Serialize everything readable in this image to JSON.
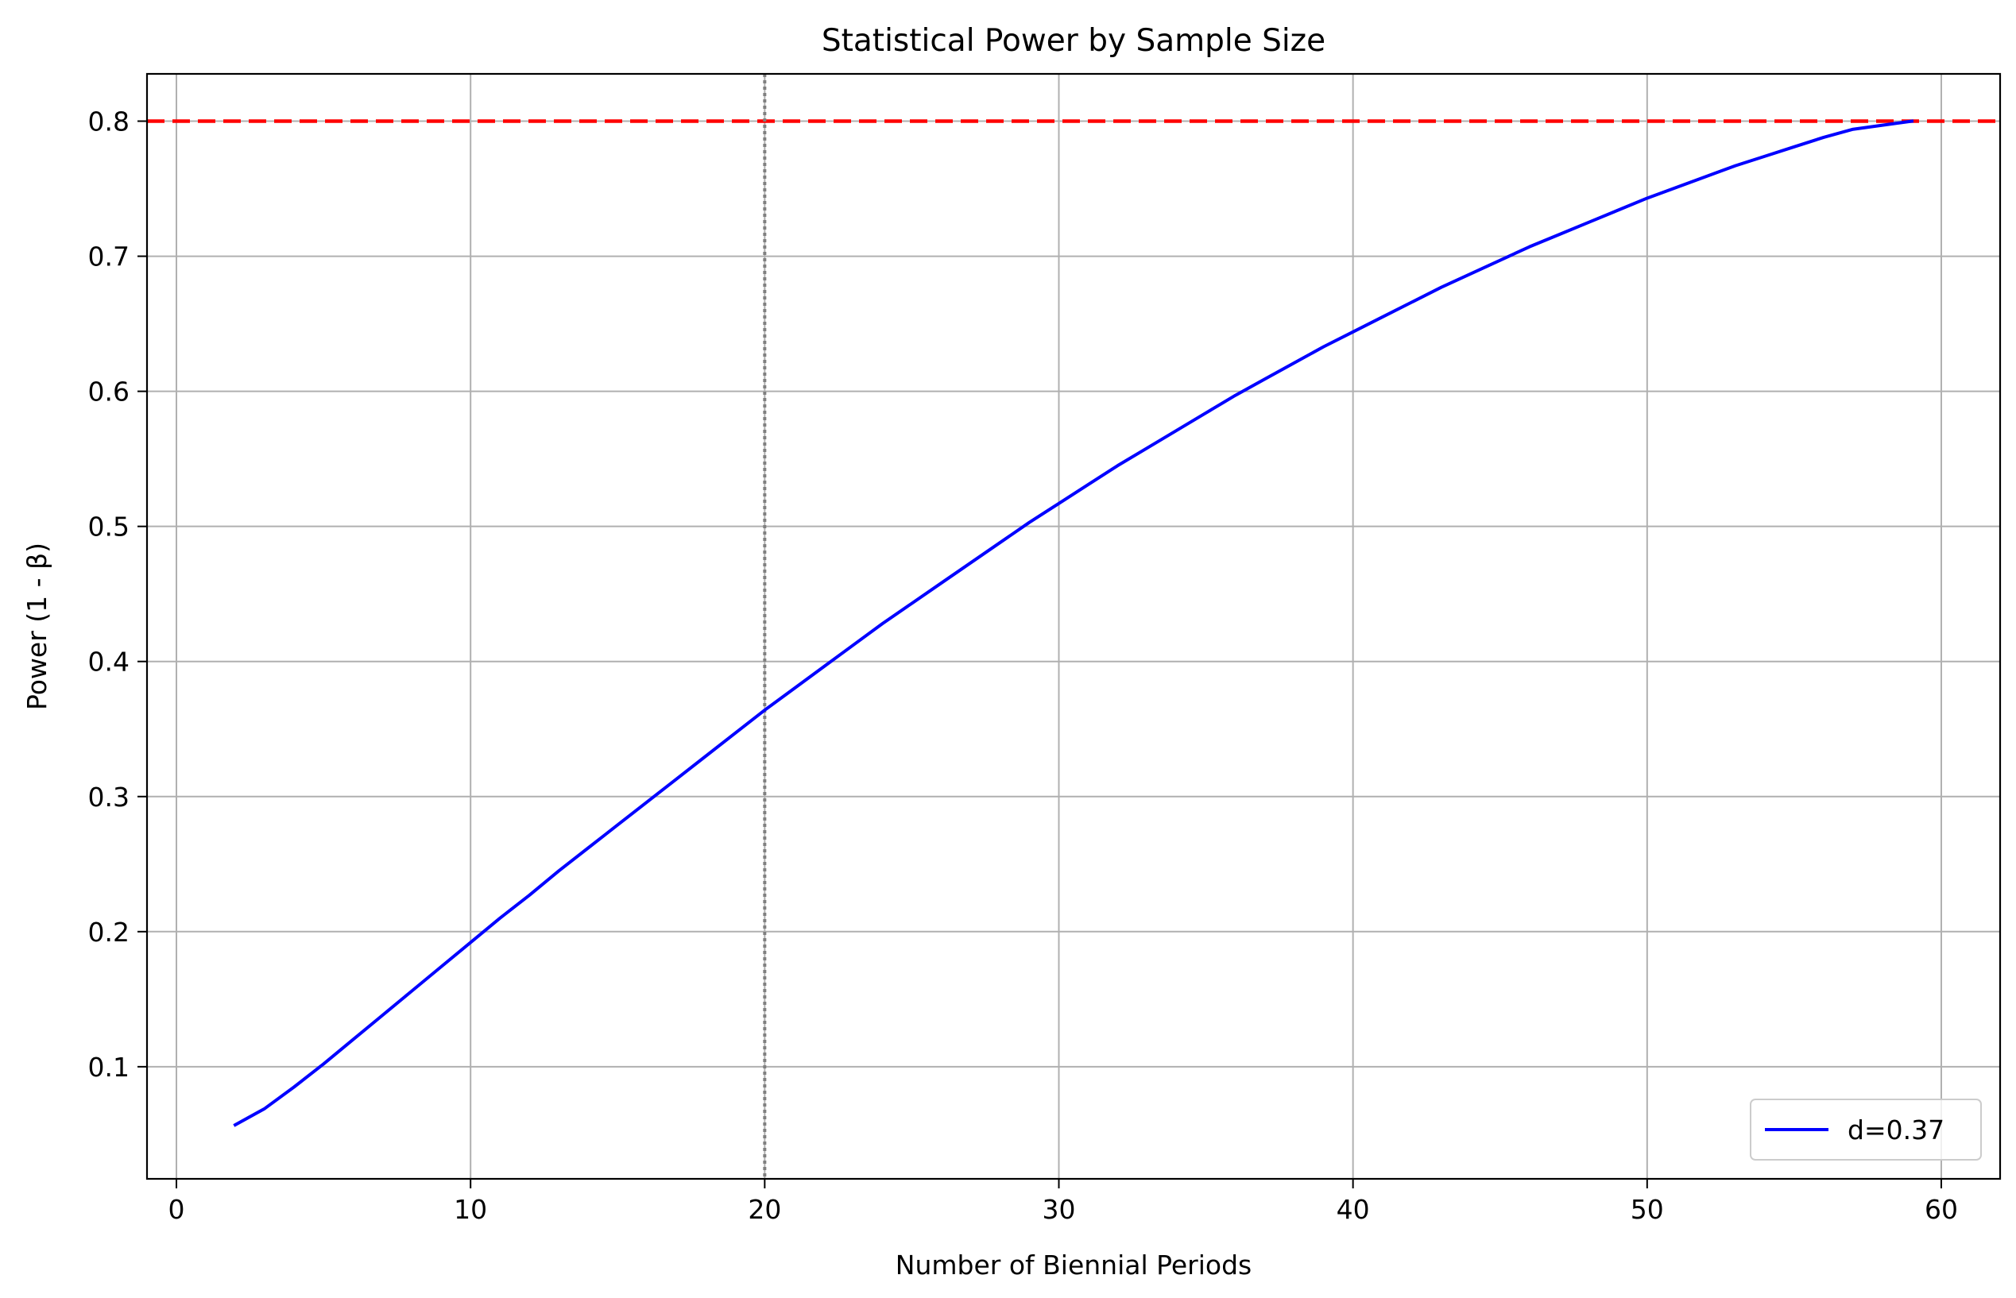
{
  "chart_data": {
    "type": "line",
    "title": "Statistical Power by Sample Size",
    "xlabel": "Number of Biennial Periods",
    "ylabel": "Power (1 - β)",
    "xlim": [
      -1,
      62
    ],
    "ylim": [
      0.017,
      0.835
    ],
    "x_ticks": [
      0,
      10,
      20,
      30,
      40,
      50,
      60
    ],
    "y_ticks": [
      0.1,
      0.2,
      0.3,
      0.4,
      0.5,
      0.6,
      0.7,
      0.8
    ],
    "grid": true,
    "legend_position": "lower-right",
    "series": [
      {
        "name": "d=0.37",
        "color": "#0000ff",
        "x": [
          2,
          3,
          4,
          5,
          6,
          7,
          8,
          9,
          10,
          11,
          12,
          13,
          14,
          15,
          16,
          17,
          18,
          19,
          20,
          21,
          22,
          23,
          24,
          25,
          26,
          27,
          28,
          29,
          30,
          31,
          32,
          33,
          34,
          35,
          36,
          37,
          38,
          39,
          40,
          41,
          42,
          43,
          44,
          45,
          46,
          47,
          48,
          49,
          50,
          51,
          52,
          53,
          54,
          55,
          56,
          57,
          58,
          59
        ],
        "y": [
          0.057,
          0.069,
          0.085,
          0.102,
          0.12,
          0.138,
          0.156,
          0.174,
          0.192,
          0.21,
          0.227,
          0.245,
          0.262,
          0.279,
          0.296,
          0.313,
          0.33,
          0.347,
          0.364,
          0.38,
          0.396,
          0.412,
          0.428,
          0.443,
          0.458,
          0.473,
          0.488,
          0.503,
          0.517,
          0.531,
          0.545,
          0.558,
          0.571,
          0.584,
          0.597,
          0.609,
          0.621,
          0.633,
          0.644,
          0.655,
          0.666,
          0.677,
          0.687,
          0.697,
          0.707,
          0.716,
          0.725,
          0.734,
          0.743,
          0.751,
          0.759,
          0.767,
          0.774,
          0.781,
          0.788,
          0.794,
          0.797,
          0.8
        ]
      }
    ],
    "reference_lines": [
      {
        "orientation": "horizontal",
        "value": 0.8,
        "color": "#ff0000",
        "style": "dashed"
      },
      {
        "orientation": "vertical",
        "value": 20,
        "color": "#808080",
        "style": "dotted"
      }
    ]
  }
}
